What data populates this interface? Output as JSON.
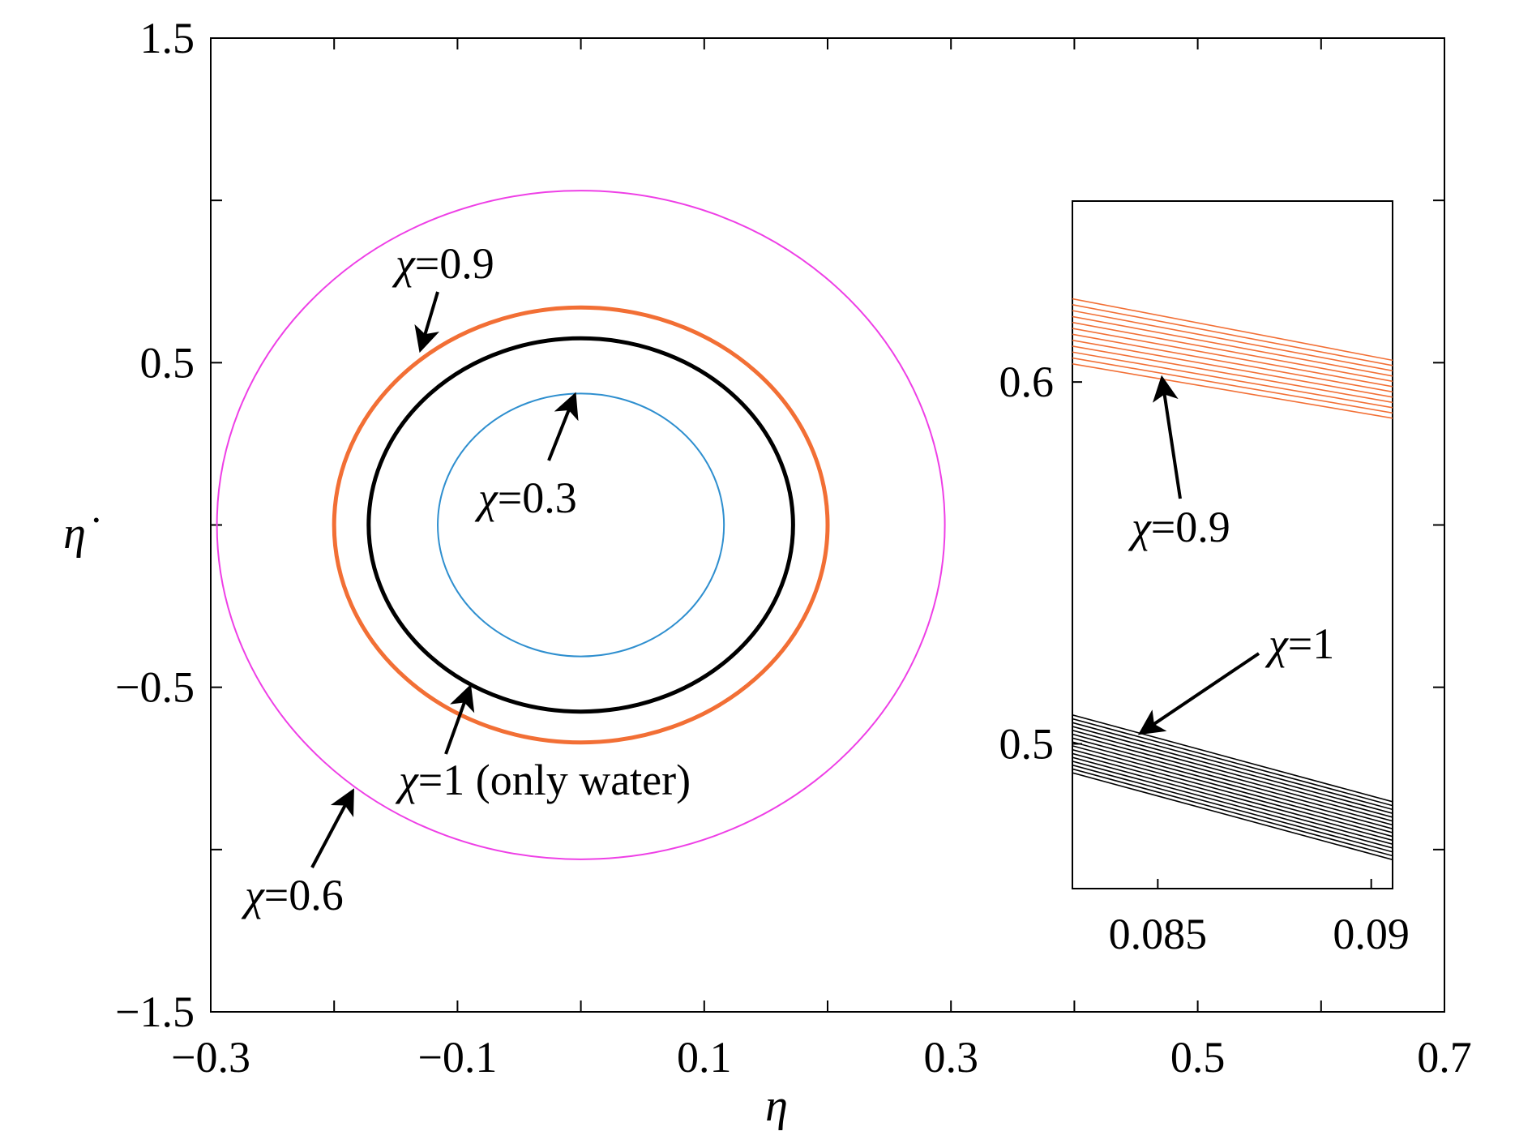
{
  "chart_data": [
    {
      "type": "line",
      "title": "",
      "xlabel": "η",
      "ylabel": "η̇",
      "xlim": [
        -0.3,
        0.7
      ],
      "ylim": [
        -1.5,
        1.5
      ],
      "x_ticks": [
        -0.3,
        -0.2,
        -0.1,
        0.0,
        0.1,
        0.2,
        0.3,
        0.4,
        0.5,
        0.6,
        0.7
      ],
      "x_tick_labels": [
        "−0.3",
        "",
        "−0.1",
        "",
        "0.1",
        "",
        "0.3",
        "",
        "0.5",
        "",
        "0.7"
      ],
      "y_ticks": [
        -1.5,
        -1.0,
        -0.5,
        0.0,
        0.5,
        1.0,
        1.5
      ],
      "y_tick_labels": [
        "−1.5",
        "",
        "−0.5",
        "",
        "0.5",
        "",
        "1.5"
      ],
      "grid": false,
      "series": [
        {
          "chi": "0.6",
          "color": "#ee3fe6",
          "center": [
            0.0,
            0.0
          ],
          "semi_axis_x": 0.295,
          "semi_axis_y": 1.03,
          "line": "thin"
        },
        {
          "chi": "0.9",
          "color": "#f26f35",
          "center": [
            0.0,
            0.0
          ],
          "semi_axis_x": 0.2,
          "semi_axis_y": 0.67,
          "line": "thick"
        },
        {
          "chi": "1",
          "color": "#000000",
          "center": [
            0.0,
            0.0
          ],
          "semi_axis_x": 0.172,
          "semi_axis_y": 0.575,
          "line": "thick"
        },
        {
          "chi": "0.3",
          "color": "#2f8fcf",
          "center": [
            0.0,
            0.0
          ],
          "semi_axis_x": 0.116,
          "semi_axis_y": 0.405,
          "line": "thin"
        }
      ],
      "annotations": [
        {
          "prefix": "χ",
          "text": "=0.9",
          "points_to": [
            -0.13,
            0.54
          ]
        },
        {
          "prefix": "χ",
          "text": "=0.3",
          "points_to": [
            -0.005,
            0.4
          ]
        },
        {
          "prefix": "χ",
          "text": "=1 (only water)",
          "points_to": [
            -0.09,
            -0.5
          ]
        },
        {
          "prefix": "χ",
          "text": "=0.6",
          "points_to": [
            -0.185,
            -0.82
          ]
        }
      ]
    },
    {
      "type": "line",
      "title": "",
      "inset": true,
      "xlabel": "",
      "ylabel": "",
      "xlim": [
        0.083,
        0.0905
      ],
      "ylim": [
        0.46,
        0.65
      ],
      "x_ticks": [
        0.085,
        0.09
      ],
      "x_tick_labels": [
        "0.085",
        "0.09"
      ],
      "y_ticks": [
        0.5,
        0.6
      ],
      "y_tick_labels": [
        "0.5",
        "0.6"
      ],
      "grid": false,
      "series": [
        {
          "chi": "0.9",
          "color": "#f26f35",
          "x_range": [
            0.083,
            0.0905
          ],
          "y_start": [
            0.605,
            0.623
          ],
          "y_end": [
            0.59,
            0.606
          ],
          "line_count": 12
        },
        {
          "chi": "1",
          "color": "#000000",
          "x_range": [
            0.083,
            0.0905
          ],
          "y_start": [
            0.492,
            0.508
          ],
          "y_end": [
            0.468,
            0.484
          ],
          "line_count": 16
        }
      ],
      "annotations": [
        {
          "prefix": "χ",
          "text": "=0.9",
          "points_to": [
            0.0851,
            0.601
          ]
        },
        {
          "prefix": "χ",
          "text": "=1",
          "points_to": [
            0.0846,
            0.503
          ]
        }
      ]
    }
  ]
}
